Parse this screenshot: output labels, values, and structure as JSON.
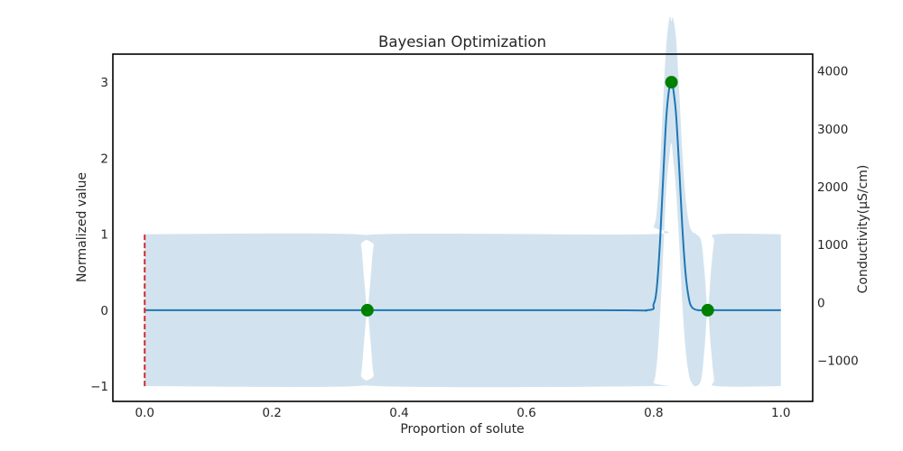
{
  "chart_data": {
    "type": "line",
    "title": "Bayesian Optimization",
    "xlabel": "Proportion of solute",
    "ylabel": "Normalized value",
    "y2label": "Conductivity(μS/cm)",
    "xlim": [
      -0.05,
      1.05
    ],
    "ylim": [
      -1.2,
      3.37
    ],
    "y2lim": [
      -1710,
      4290
    ],
    "xticks": [
      "0.0",
      "0.2",
      "0.4",
      "0.6",
      "0.8",
      "1.0"
    ],
    "xtick_values": [
      0.0,
      0.2,
      0.4,
      0.6,
      0.8,
      1.0
    ],
    "yticks": [
      "−1",
      "0",
      "1",
      "2",
      "3"
    ],
    "ytick_values": [
      -1,
      0,
      1,
      2,
      3
    ],
    "y2ticks": [
      "−1000",
      "0",
      "1000",
      "2000",
      "3000",
      "4000"
    ],
    "y2tick_values": [
      -1000,
      0,
      1000,
      2000,
      3000,
      4000
    ],
    "grid": false,
    "colors": {
      "mean": "#1f77b4",
      "confidence": "#d2e3ef",
      "observation": "#008000",
      "marker_line": "#d62728",
      "frame": "#000000"
    },
    "mean_curve": {
      "x": [
        0.0,
        0.7,
        0.79,
        0.8,
        0.805,
        0.81,
        0.815,
        0.82,
        0.825,
        0.828,
        0.83,
        0.835,
        0.84,
        0.845,
        0.85,
        0.855,
        0.86,
        0.87,
        0.885,
        1.0
      ],
      "y": [
        0,
        0,
        0,
        0.08,
        0.3,
        0.9,
        1.75,
        2.55,
        2.95,
        3.0,
        2.96,
        2.6,
        1.9,
        1.1,
        0.5,
        0.17,
        0.04,
        0.0,
        0,
        0
      ]
    },
    "confidence_band": {
      "x": [
        0.0,
        0.33,
        0.34,
        0.345,
        0.35,
        0.355,
        0.36,
        0.37,
        0.79,
        0.8,
        0.805,
        0.81,
        0.815,
        0.82,
        0.825,
        0.828,
        0.83,
        0.835,
        0.84,
        0.845,
        0.85,
        0.855,
        0.86,
        0.867,
        0.875,
        0.88,
        0.885,
        0.89,
        0.895,
        0.9,
        1.0
      ],
      "upper": [
        1.0,
        1.0,
        0.85,
        0.4,
        0.02,
        0.4,
        0.85,
        1.0,
        1.0,
        1.1,
        1.3,
        1.9,
        2.75,
        3.5,
        3.85,
        3.8,
        3.85,
        3.6,
        2.9,
        2.1,
        1.5,
        1.17,
        1.04,
        1.0,
        0.9,
        0.5,
        0.02,
        0.5,
        0.9,
        1.0,
        1.0
      ],
      "lower": [
        -1.0,
        -1.0,
        -0.85,
        -0.4,
        -0.02,
        -0.4,
        -0.85,
        -1.0,
        -1.0,
        -0.95,
        -0.7,
        -0.1,
        0.75,
        1.6,
        2.05,
        2.2,
        2.05,
        1.6,
        0.9,
        0.1,
        -0.5,
        -0.83,
        -0.96,
        -1.0,
        -0.9,
        -0.5,
        -0.02,
        -0.5,
        -0.9,
        -1.0,
        -1.0
      ]
    },
    "observations": {
      "x": [
        0.35,
        0.828,
        0.885
      ],
      "y": [
        0,
        3.0,
        0
      ]
    },
    "current_point": {
      "x": 0.0,
      "y_range": [
        -1,
        1
      ]
    }
  }
}
